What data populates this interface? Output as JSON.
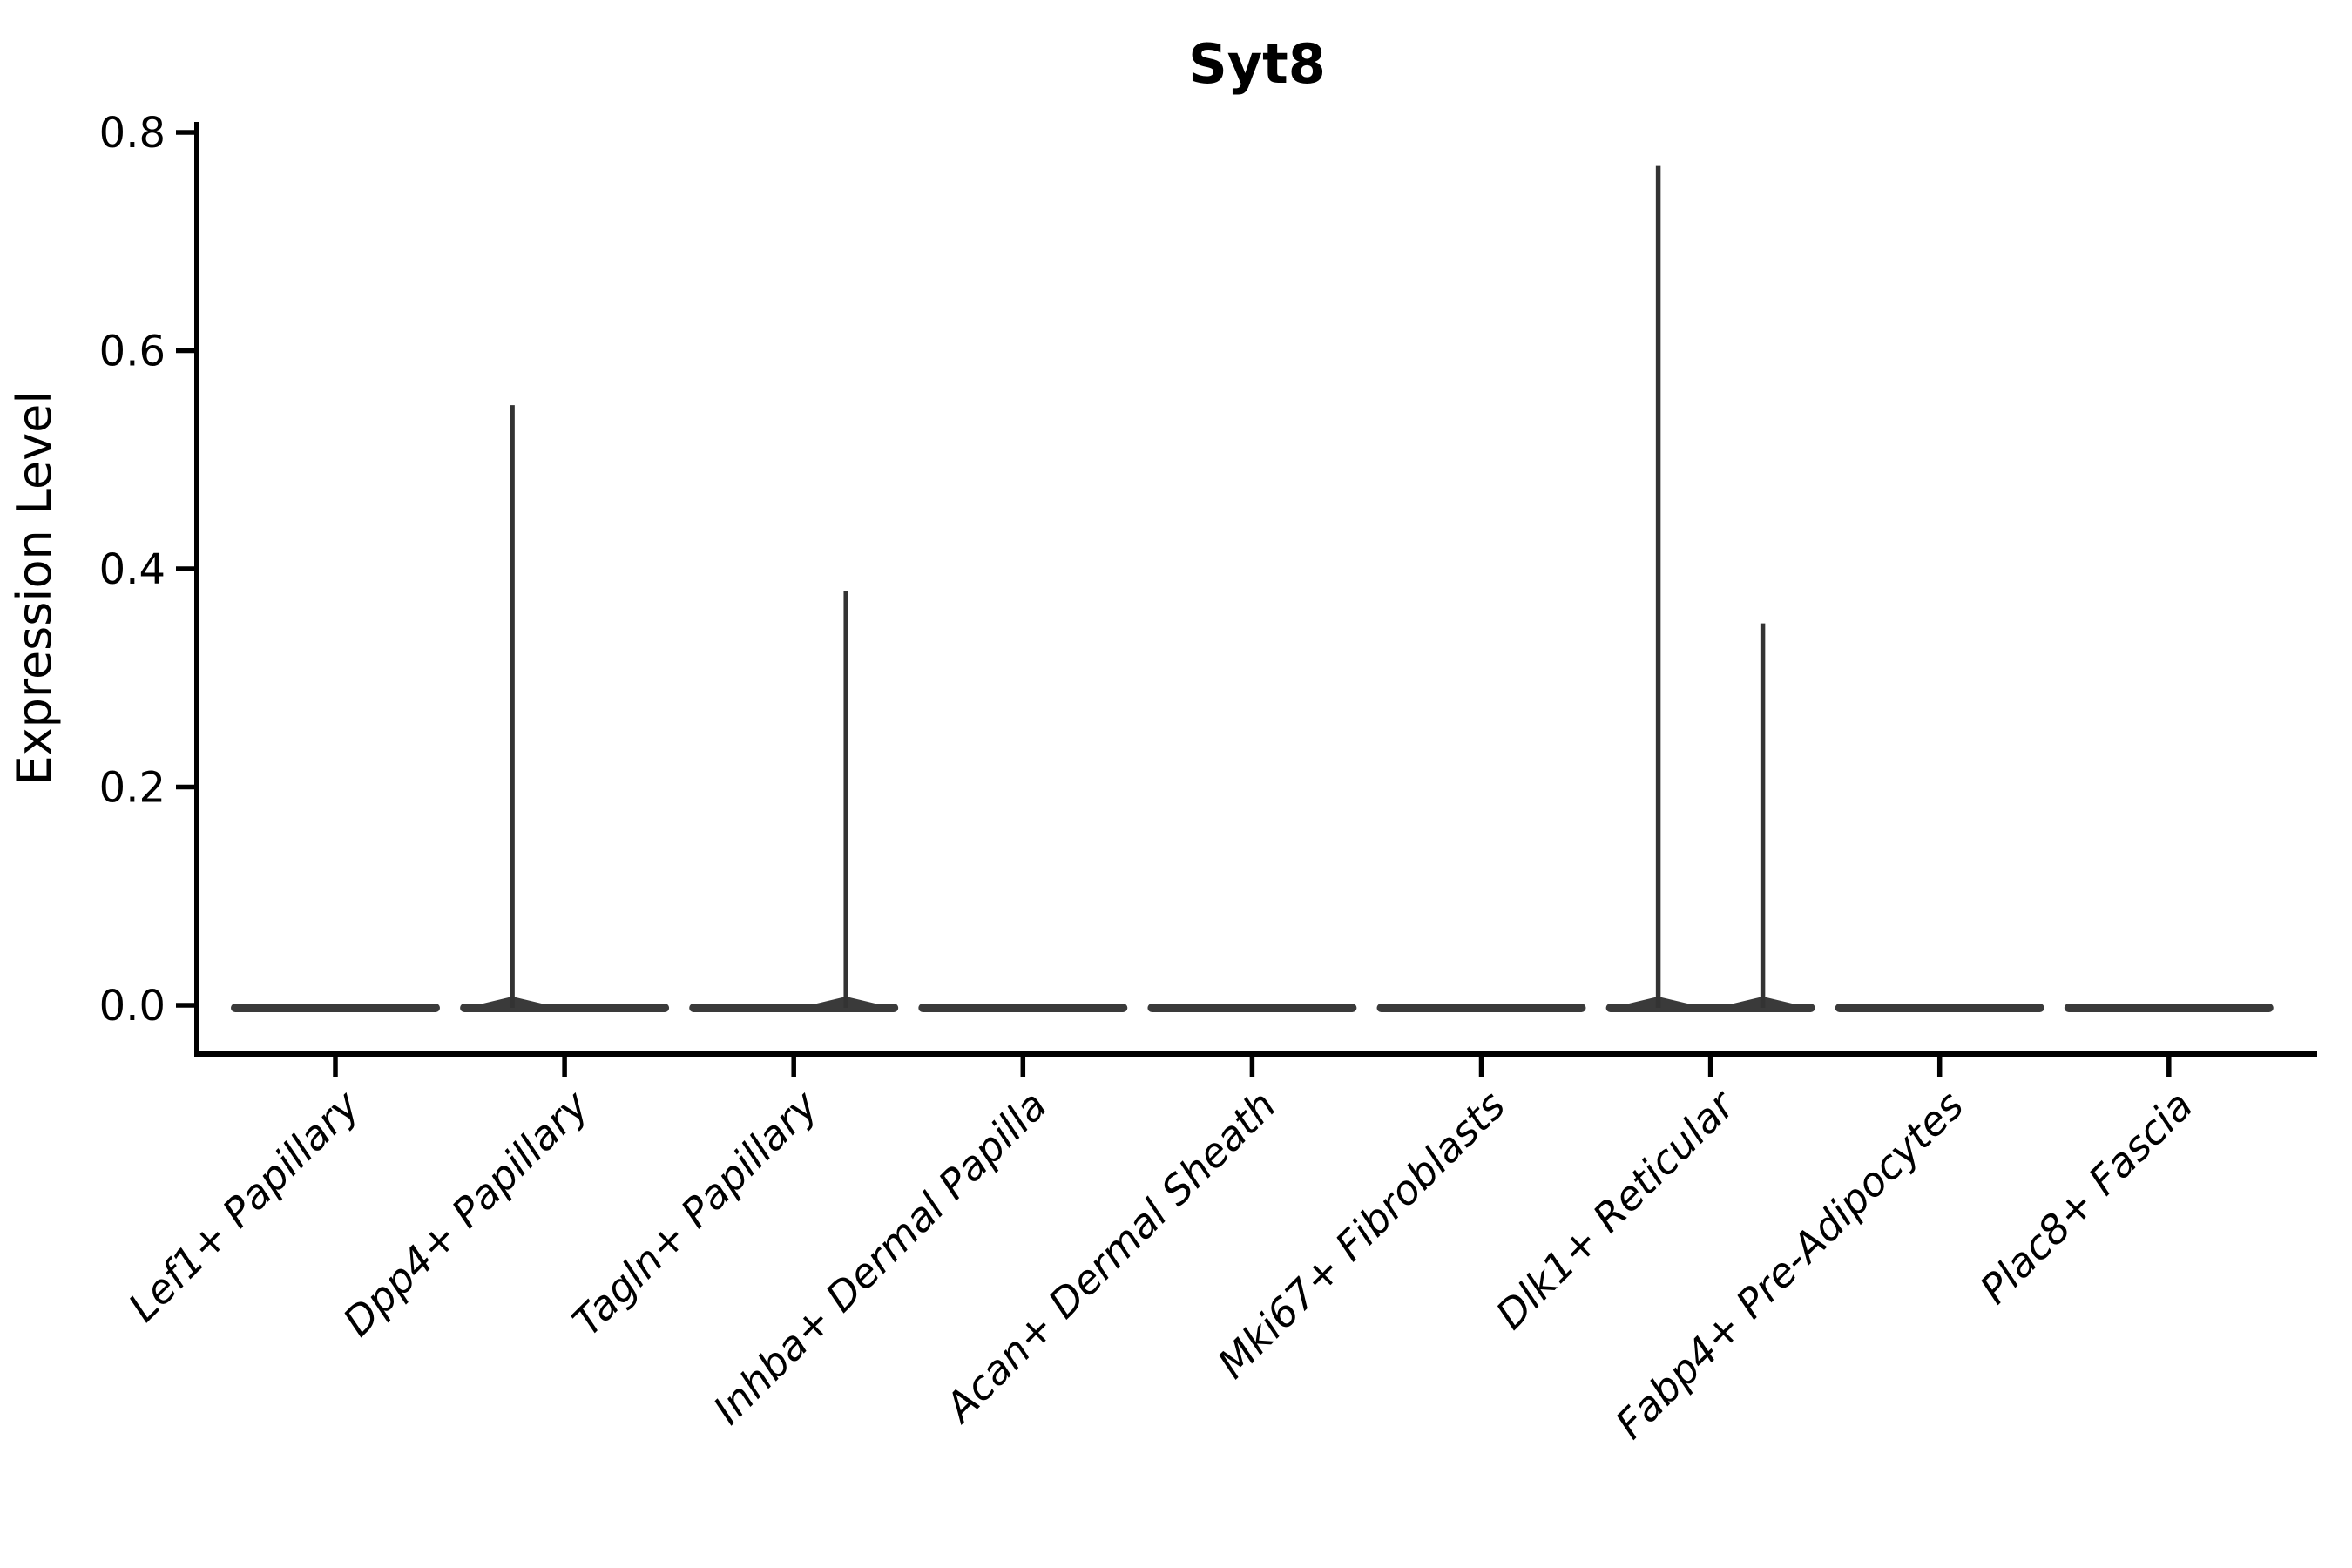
{
  "page": {
    "background_color": "#ffffff",
    "axis_color": "#000000",
    "violin_color": "#3a3a3a",
    "spike_color": "#333333"
  },
  "chart_data": {
    "type": "violin",
    "title": "Syt8",
    "xlabel": "",
    "ylabel": "Expression Level",
    "ylim": [
      0.0,
      0.8
    ],
    "yticks": [
      0.0,
      0.2,
      0.4,
      0.6,
      0.8
    ],
    "ytick_labels": [
      "0.0",
      "0.2",
      "0.4",
      "0.6",
      "0.8"
    ],
    "grid": false,
    "legend_position": "none",
    "categories": [
      {
        "label": "Lef1+ Papillary",
        "baseline_value": 0.0,
        "spikes": []
      },
      {
        "label": "Dpp4+ Papillary",
        "baseline_value": 0.0,
        "spikes": [
          {
            "side": "left",
            "max": 0.55
          }
        ]
      },
      {
        "label": "Tagln+ Papillary",
        "baseline_value": 0.0,
        "spikes": [
          {
            "side": "right",
            "max": 0.38
          }
        ]
      },
      {
        "label": "Inhba+ Dermal Papilla",
        "baseline_value": 0.0,
        "spikes": []
      },
      {
        "label": "Acan+ Dermal Sheath",
        "baseline_value": 0.0,
        "spikes": []
      },
      {
        "label": "Mki67+ Fibroblasts",
        "baseline_value": 0.0,
        "spikes": []
      },
      {
        "label": "Dlk1+ Reticular",
        "baseline_value": 0.0,
        "spikes": [
          {
            "side": "left",
            "max": 0.77
          },
          {
            "side": "right",
            "max": 0.35
          }
        ]
      },
      {
        "label": "Fabp4+ Pre-Adipocytes",
        "baseline_value": 0.0,
        "spikes": []
      },
      {
        "label": "Plac8+ Fascia",
        "baseline_value": 0.0,
        "spikes": []
      }
    ]
  }
}
